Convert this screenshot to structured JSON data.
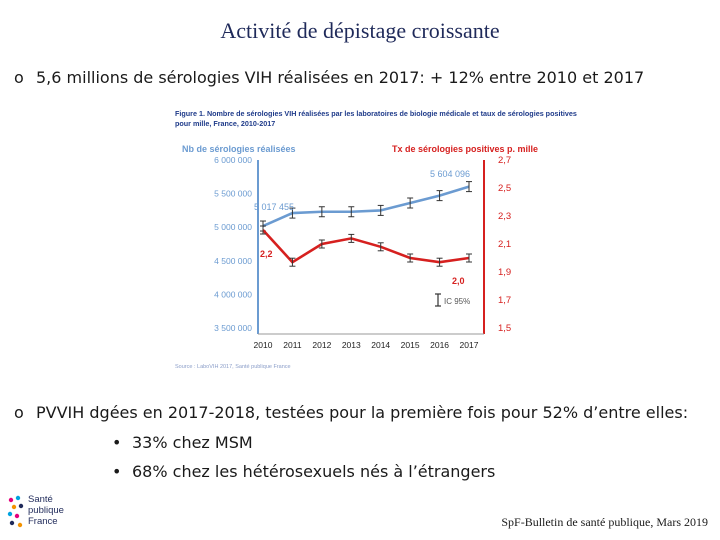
{
  "slide": {
    "title": "Activité de dépistage croissante",
    "bullet1_mark": "o",
    "bullet1": "5,6 millions de sérologies VIH réalisées en 2017: + 12% entre 2010 et 2017",
    "bullet2_mark": "o",
    "bullet2": "PVVIH dgées en 2017-2018, testées pour la première fois pour 52% d’entre elles:",
    "sub_mark": "•",
    "sub1": "33% chez MSM",
    "sub2": "68% chez les hétérosexuels nés à l’étrangers",
    "footer": "SpF-Bulletin de santé publique, Mars 2019",
    "logo_lines": [
      "Santé",
      "publique",
      "France"
    ]
  },
  "colors": {
    "blue": "#6b9bd1",
    "red": "#d6201f",
    "title": "#1f2a5a",
    "caption": "#1f3b8a"
  },
  "chart_data": {
    "type": "line",
    "caption": "Figure 1. Nombre de sérologies VIH réalisées par les laboratoires de biologie médicale et taux de sérologies positives pour mille, France, 2010-2017",
    "source": "Source : LaboVIH 2017, Santé publique France",
    "x": [
      "2010",
      "2011",
      "2012",
      "2013",
      "2014",
      "2015",
      "2016",
      "2017"
    ],
    "left_axis": {
      "label": "Nb de sérologies réalisées",
      "range": [
        3500000,
        6000000
      ],
      "ticks": [
        "3 500 000",
        "4 000 000",
        "4 500 000",
        "5 000 000",
        "5 500 000",
        "6 000 000"
      ]
    },
    "right_axis": {
      "label": "Tx de sérologies positives p. mille",
      "range": [
        1.5,
        2.7
      ],
      "ticks": [
        "1,5",
        "1,7",
        "1,9",
        "2,1",
        "2,3",
        "2,5",
        "2,7"
      ]
    },
    "series": [
      {
        "name": "Nb de sérologies réalisées",
        "axis": "left",
        "values": [
          5017455,
          5210000,
          5230000,
          5230000,
          5250000,
          5360000,
          5470000,
          5604096
        ]
      },
      {
        "name": "Tx de sérologies positives p. mille",
        "axis": "right",
        "values": [
          2.2,
          1.97,
          2.1,
          2.14,
          2.08,
          2.0,
          1.97,
          2.0
        ]
      }
    ],
    "annotations": [
      "5 017 455",
      "5 604 096",
      "2,2",
      "2,0"
    ],
    "legend": "IC 95%"
  }
}
